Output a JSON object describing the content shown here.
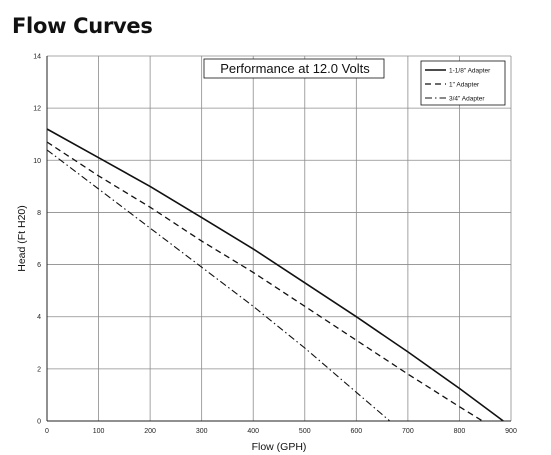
{
  "heading": "Flow Curves",
  "colors": {
    "grid": "#8c8c8c",
    "line": "#111111"
  },
  "chart_data": {
    "type": "line",
    "title": "Performance at 12.0 Volts",
    "xlabel": "Flow (GPH)",
    "ylabel": "Head (Ft H20)",
    "xlim": [
      0,
      900
    ],
    "ylim": [
      0,
      14
    ],
    "xticks": [
      0,
      100,
      200,
      300,
      400,
      500,
      600,
      700,
      800,
      900
    ],
    "yticks": [
      0,
      2,
      4,
      6,
      8,
      10,
      12,
      14
    ],
    "grid": true,
    "legend_position": "top-right",
    "series": [
      {
        "name": "1-1/8\" Adapter",
        "style": "solid",
        "x": [
          0,
          100,
          200,
          300,
          400,
          500,
          600,
          700,
          800,
          885
        ],
        "y": [
          11.2,
          10.1,
          9.0,
          7.8,
          6.6,
          5.3,
          4.0,
          2.65,
          1.25,
          0
        ]
      },
      {
        "name": "1\" Adapter",
        "style": "dashed",
        "x": [
          0,
          100,
          200,
          300,
          400,
          500,
          600,
          700,
          800,
          845
        ],
        "y": [
          10.7,
          9.4,
          8.2,
          6.9,
          5.7,
          4.4,
          3.1,
          1.8,
          0.55,
          0
        ]
      },
      {
        "name": "3/4\" Adapter",
        "style": "dashdot",
        "x": [
          0,
          100,
          200,
          300,
          400,
          500,
          600,
          665
        ],
        "y": [
          10.4,
          8.9,
          7.4,
          5.9,
          4.4,
          2.8,
          1.1,
          0
        ]
      }
    ]
  }
}
